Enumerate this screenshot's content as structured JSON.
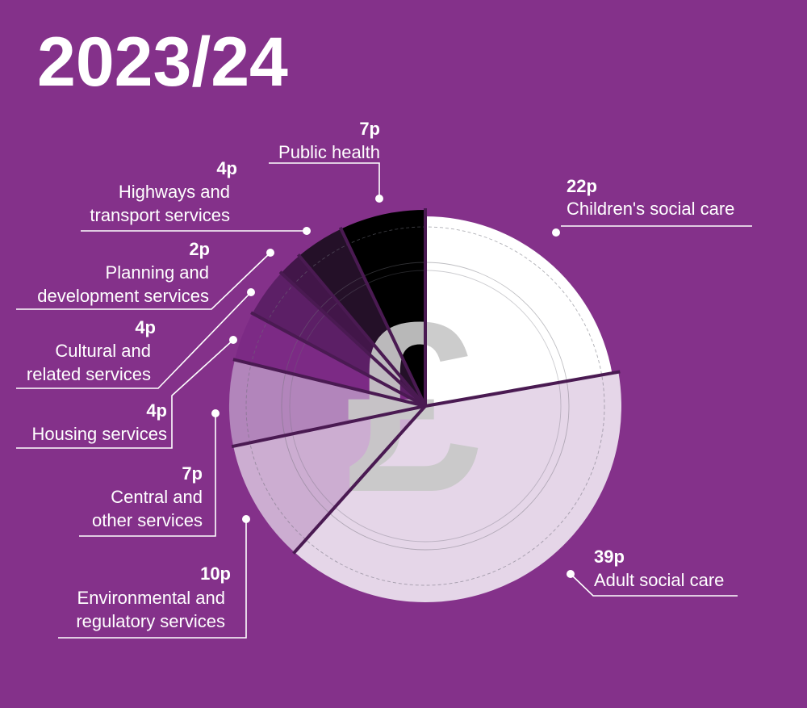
{
  "chart_data": {
    "type": "pie",
    "title": "2023/24",
    "slices": [
      {
        "value": 22,
        "value_label": "22p",
        "label_lines": [
          "Children's social care"
        ],
        "color": "#ffffff"
      },
      {
        "value": 39,
        "value_label": "39p",
        "label_lines": [
          "Adult social care"
        ],
        "color": "#e5d6e8"
      },
      {
        "value": 10,
        "value_label": "10p",
        "label_lines": [
          "Environmental and",
          "regulatory services"
        ],
        "color": "#ccadd1"
      },
      {
        "value": 7,
        "value_label": "7p",
        "label_lines": [
          "Central and",
          "other services"
        ],
        "color": "#b285bb"
      },
      {
        "value": 4,
        "value_label": "4p",
        "label_lines": [
          "Housing services"
        ],
        "color": "#7c2a85"
      },
      {
        "value": 4,
        "value_label": "4p",
        "label_lines": [
          "Cultural and",
          "related services"
        ],
        "color": "#5c1f66"
      },
      {
        "value": 2,
        "value_label": "2p",
        "label_lines": [
          "Planning and",
          "development services"
        ],
        "color": "#421649"
      },
      {
        "value": 4,
        "value_label": "4p",
        "label_lines": [
          "Highways and",
          "transport services"
        ],
        "color": "#241028"
      },
      {
        "value": 7,
        "value_label": "7p",
        "label_lines": [
          "Public health"
        ],
        "color": "#000000"
      }
    ],
    "center_symbol": "£",
    "background": "#84318a",
    "divider_color": "#4a1a52"
  }
}
